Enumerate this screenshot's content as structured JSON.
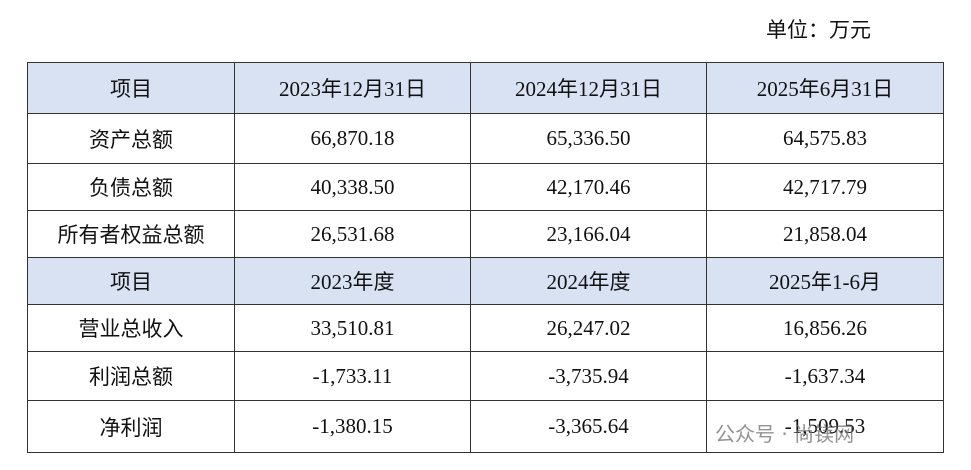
{
  "unit": "单位：万元",
  "table": {
    "header1": [
      "项目",
      "2023年12月31日",
      "2024年12月31日",
      "2025年6月31日"
    ],
    "rows1": [
      [
        "资产总额",
        "66,870.18",
        "65,336.50",
        "64,575.83"
      ],
      [
        "负债总额",
        "40,338.50",
        "42,170.46",
        "42,717.79"
      ],
      [
        "所有者权益总额",
        "26,531.68",
        "23,166.04",
        "21,858.04"
      ]
    ],
    "header2": [
      "项目",
      "2023年度",
      "2024年度",
      "2025年1-6月"
    ],
    "rows2": [
      [
        "营业总收入",
        "33,510.81",
        "26,247.02",
        "16,856.26"
      ],
      [
        "利润总额",
        "-1,733.11",
        "-3,735.94",
        "-1,637.34"
      ],
      [
        "净利润",
        "-1,380.15",
        "-3,365.64",
        "-1,509.53"
      ]
    ]
  },
  "watermark": "公众号 · 尚镁网"
}
